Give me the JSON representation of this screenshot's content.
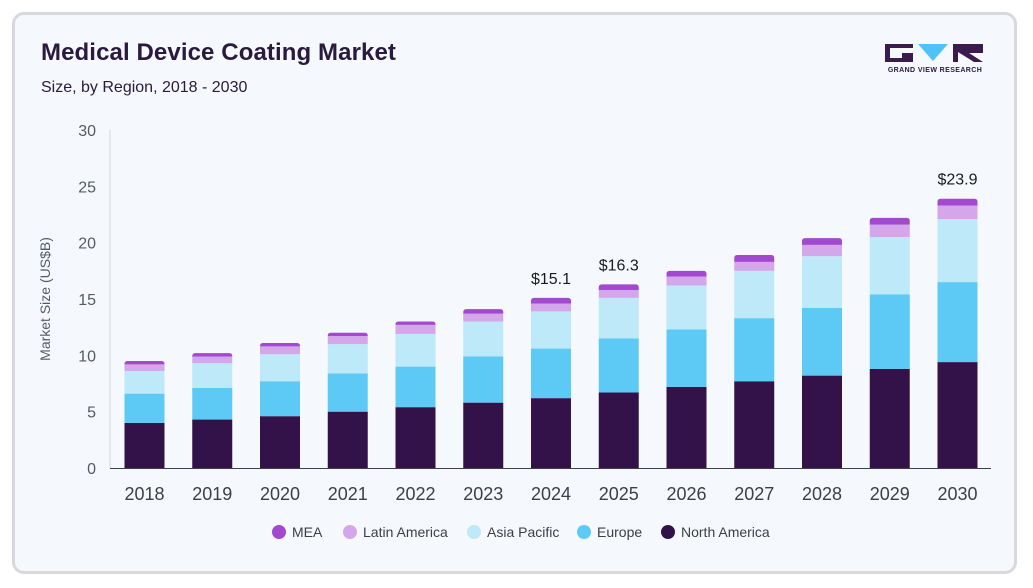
{
  "title": "Medical Device Coating Market",
  "subtitle": "Size, by Region, 2018 - 2030",
  "logo": {
    "text": "GRAND VIEW RESEARCH",
    "colors": {
      "dark": "#3b1a4e",
      "accent": "#4fc3f7"
    }
  },
  "chart_data": {
    "type": "bar",
    "stacked": true,
    "categories": [
      "2018",
      "2019",
      "2020",
      "2021",
      "2022",
      "2023",
      "2024",
      "2025",
      "2026",
      "2027",
      "2028",
      "2029",
      "2030"
    ],
    "ylabel": "Market Size (US$B)",
    "xlabel": "",
    "ylim": [
      0,
      30
    ],
    "yticks": [
      "0",
      "5",
      "10",
      "15",
      "20",
      "25",
      "30"
    ],
    "grid": false,
    "legend_position": "bottom",
    "series": [
      {
        "name": "North America",
        "color": "#33124a",
        "values": [
          4.0,
          4.3,
          4.6,
          5.0,
          5.4,
          5.8,
          6.2,
          6.7,
          7.2,
          7.7,
          8.2,
          8.8,
          9.4
        ]
      },
      {
        "name": "Europe",
        "color": "#5ccaf4",
        "values": [
          2.6,
          2.8,
          3.1,
          3.4,
          3.6,
          4.1,
          4.4,
          4.8,
          5.1,
          5.6,
          6.0,
          6.6,
          7.1
        ]
      },
      {
        "name": "Asia Pacific",
        "color": "#bde9f8",
        "values": [
          2.0,
          2.2,
          2.4,
          2.6,
          2.9,
          3.1,
          3.3,
          3.6,
          3.9,
          4.2,
          4.6,
          5.1,
          5.6
        ]
      },
      {
        "name": "Latin America",
        "color": "#d4a6ea",
        "values": [
          0.6,
          0.6,
          0.7,
          0.7,
          0.8,
          0.7,
          0.7,
          0.7,
          0.8,
          0.8,
          1.0,
          1.1,
          1.2
        ]
      },
      {
        "name": "MEA",
        "color": "#a249cf",
        "values": [
          0.3,
          0.3,
          0.3,
          0.3,
          0.3,
          0.4,
          0.5,
          0.5,
          0.5,
          0.6,
          0.6,
          0.6,
          0.6
        ]
      }
    ],
    "annotations": [
      {
        "category": "2024",
        "text": "$15.1",
        "value": 15.1
      },
      {
        "category": "2025",
        "text": "$16.3",
        "value": 16.3
      },
      {
        "category": "2030",
        "text": "$23.9",
        "value": 23.9
      }
    ],
    "legend_order": [
      "MEA",
      "Latin America",
      "Asia Pacific",
      "Europe",
      "North America"
    ]
  }
}
